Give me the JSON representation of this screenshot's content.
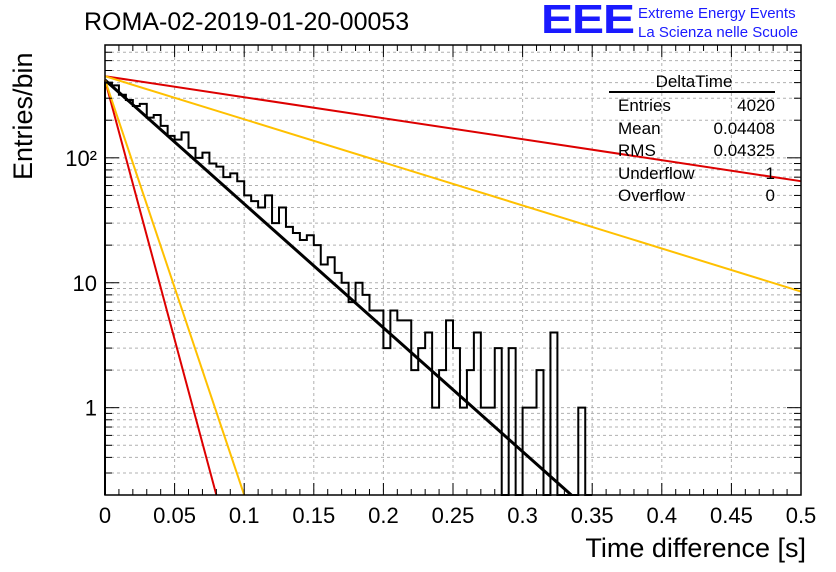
{
  "header": {
    "title": "ROMA-02-2019-01-20-00053",
    "logo": "EEE",
    "logo_line1": "Extreme Energy Events",
    "logo_line2": "La Scienza nelle Scuole"
  },
  "stats_box": {
    "title": "DeltaTime",
    "rows": [
      {
        "label": "Entries",
        "value": "4020"
      },
      {
        "label": "Mean",
        "value": "0.04408"
      },
      {
        "label": "RMS",
        "value": "0.04325"
      },
      {
        "label": "Underflow",
        "value": "1"
      },
      {
        "label": "Overflow",
        "value": "0"
      }
    ]
  },
  "chart_data": {
    "type": "bar",
    "subtype": "step-histogram",
    "xlabel": "Time difference [s]",
    "ylabel": "Entries/bin",
    "xlim": [
      0,
      0.5
    ],
    "ylim": [
      0.2,
      800
    ],
    "yscale": "log",
    "grid": true,
    "x_ticks": [
      "0",
      "0.05",
      "0.1",
      "0.15",
      "0.2",
      "0.25",
      "0.3",
      "0.35",
      "0.4",
      "0.45",
      "0.5"
    ],
    "y_ticks": [
      "1",
      "10",
      "10²"
    ],
    "bin_width": 0.005,
    "histogram_bins": [
      400,
      380,
      320,
      290,
      260,
      270,
      210,
      220,
      180,
      150,
      140,
      160,
      120,
      100,
      110,
      90,
      85,
      70,
      75,
      65,
      50,
      45,
      40,
      50,
      30,
      40,
      28,
      25,
      22,
      24,
      20,
      14,
      16,
      12,
      10,
      7,
      10,
      8,
      6,
      6,
      3,
      6,
      5,
      5,
      2,
      3,
      4,
      1,
      2,
      5,
      3,
      1,
      2,
      4,
      1,
      1,
      3,
      0,
      3,
      0,
      1,
      1,
      2,
      0,
      4,
      0,
      0,
      0,
      1,
      0
    ],
    "fit_lines": [
      {
        "color": "#000000",
        "x": [
          0,
          0.335
        ],
        "y": [
          420,
          0.2
        ]
      },
      {
        "color": "#dd0000",
        "x": [
          0,
          0.08
        ],
        "y": [
          420,
          0.2
        ]
      },
      {
        "color": "#ffc000",
        "x": [
          0,
          0.1
        ],
        "y": [
          420,
          0.2
        ]
      },
      {
        "color": "#dd0000",
        "x": [
          0,
          0.5
        ],
        "y": [
          450,
          65
        ]
      },
      {
        "color": "#ffc000",
        "x": [
          0,
          0.5
        ],
        "y": [
          450,
          8.5
        ]
      }
    ]
  }
}
